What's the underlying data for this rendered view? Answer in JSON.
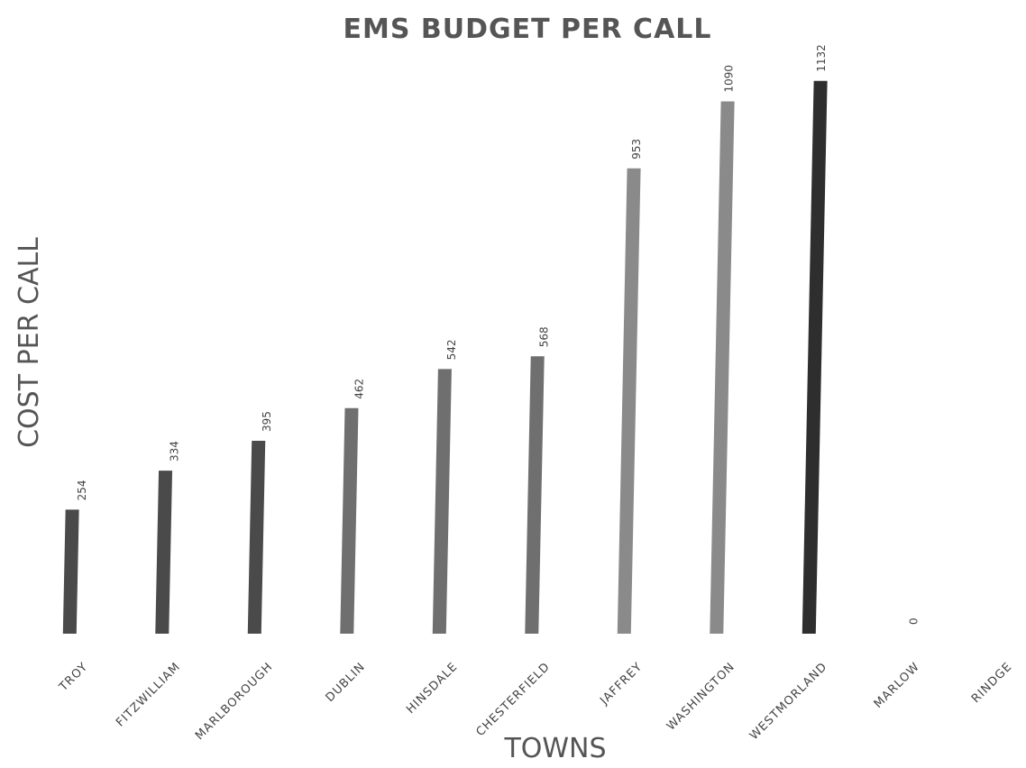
{
  "chart_data": {
    "type": "bar",
    "title": "EMS BUDGET PER CALL",
    "xlabel": "TOWNS",
    "ylabel": "COST PER CALL",
    "categories": [
      "TROY",
      "FITZWILLIAM",
      "MARLBOROUGH",
      "DUBLIN",
      "HINSDALE",
      "CHESTERFIELD",
      "JAFFREY",
      "WASHINGTON",
      "WESTMORLAND",
      "MARLOW",
      "RINDGE"
    ],
    "values": [
      254,
      334,
      395,
      462,
      542,
      568,
      953,
      1090,
      1132,
      0,
      null
    ],
    "data_labels": [
      "254",
      "334",
      "395",
      "462",
      "542",
      "568",
      "953",
      "1090",
      "1132",
      "0",
      ""
    ],
    "ylim": [
      0,
      1150
    ],
    "grid": false,
    "legend": "none",
    "colors": {
      "bar_dark": "#4a4a4a",
      "bar_mid": "#6f6f6f",
      "bar_light": "#8a8a8a",
      "bar_darkest": "#2e2e2e"
    }
  }
}
